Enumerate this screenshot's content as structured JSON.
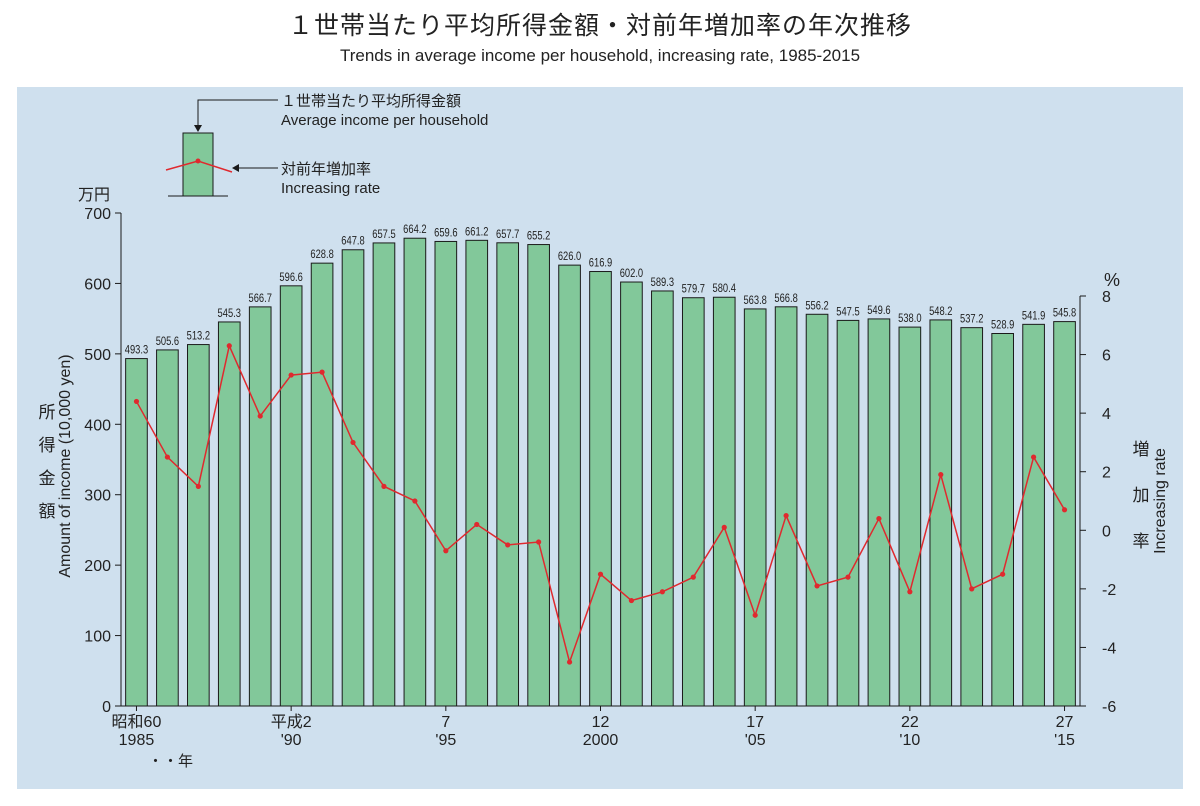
{
  "header": {
    "title": "１世帯当たり平均所得金額・対前年増加率の年次推移",
    "subtitle": "Trends in average income per household, increasing rate, 1985-2015"
  },
  "legend": {
    "bar_label_ja": "１世帯当たり平均所得金額",
    "bar_label_en": "Average income per household",
    "line_label_ja": "対前年増加率",
    "line_label_en": "Increasing rate"
  },
  "axes": {
    "left_unit": "万円",
    "left_label_ja": [
      "所",
      "得",
      "金",
      "額"
    ],
    "left_label_en": "Amount of income (10,000 yen)",
    "right_unit": "%",
    "right_label_ja": [
      "増",
      "加",
      "率"
    ],
    "right_label_en": "Increasing rate",
    "x_year_suffix": "・・年"
  },
  "colors": {
    "background": "#cfe0ee",
    "bar_fill": "#82c89a",
    "bar_stroke": "#1a1a1a",
    "line": "#e0292e"
  },
  "chart_data": {
    "type": "bar",
    "years": [
      1985,
      1986,
      1987,
      1988,
      1989,
      1990,
      1991,
      1992,
      1993,
      1994,
      1995,
      1996,
      1997,
      1998,
      1999,
      2000,
      2001,
      2002,
      2003,
      2004,
      2005,
      2006,
      2007,
      2008,
      2009,
      2010,
      2011,
      2012,
      2013,
      2014,
      2015
    ],
    "income": [
      493.3,
      505.6,
      513.2,
      545.3,
      566.7,
      596.6,
      628.8,
      647.8,
      657.5,
      664.2,
      659.6,
      661.2,
      657.7,
      655.2,
      626.0,
      616.9,
      602.0,
      589.3,
      579.7,
      580.4,
      563.8,
      566.8,
      556.2,
      547.5,
      549.6,
      538.0,
      548.2,
      537.2,
      528.9,
      541.9,
      545.8
    ],
    "rate": [
      4.4,
      2.5,
      1.5,
      6.3,
      3.9,
      5.3,
      5.4,
      3.0,
      1.5,
      1.0,
      -0.7,
      0.2,
      -0.5,
      -0.4,
      -4.5,
      -1.5,
      -2.4,
      -2.1,
      -1.6,
      0.1,
      -2.9,
      0.5,
      -1.9,
      -1.6,
      0.4,
      -2.1,
      1.9,
      -2.0,
      -1.5,
      2.5,
      0.7
    ],
    "series": [
      {
        "name": "Average income per household",
        "axis": "left",
        "kind": "bar"
      },
      {
        "name": "Increasing rate",
        "axis": "right",
        "kind": "line"
      }
    ],
    "ylim_left": [
      0,
      700
    ],
    "yticks_left": [
      0,
      100,
      200,
      300,
      400,
      500,
      600,
      700
    ],
    "ylim_right": [
      -6,
      8
    ],
    "yticks_right": [
      -6,
      -4,
      -2,
      0,
      2,
      4,
      6,
      8
    ],
    "x_tick_labels": [
      {
        "year": 1985,
        "top": "昭和60",
        "bottom": "1985"
      },
      {
        "year": 1990,
        "top": "平成2",
        "bottom": "'90"
      },
      {
        "year": 1995,
        "top": "7",
        "bottom": "'95"
      },
      {
        "year": 2000,
        "top": "12",
        "bottom": "2000"
      },
      {
        "year": 2005,
        "top": "17",
        "bottom": "'05"
      },
      {
        "year": 2010,
        "top": "22",
        "bottom": "'10"
      },
      {
        "year": 2015,
        "top": "27",
        "bottom": "'15"
      }
    ]
  }
}
